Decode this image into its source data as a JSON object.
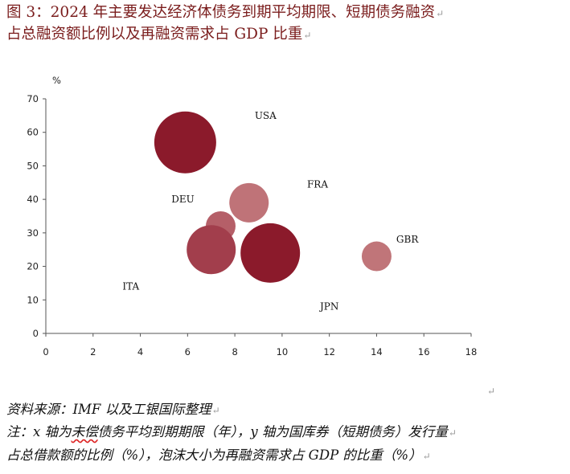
{
  "figure": {
    "title_line1": "图 3：2024 年主要发达经济体债务到期平均期限、短期债务融资",
    "title_line2": "占总融资额比例以及再融资需求占 GDP 比重"
  },
  "chart_data": {
    "type": "bubble",
    "ylabel": "%",
    "xlim": [
      0,
      18
    ],
    "ylim": [
      0,
      70
    ],
    "xticks": [
      0,
      2,
      4,
      6,
      8,
      10,
      12,
      14,
      16,
      18
    ],
    "yticks": [
      0,
      10,
      20,
      30,
      40,
      50,
      60,
      70
    ],
    "points": [
      {
        "label": "USA",
        "x": 5.9,
        "y": 57,
        "size": 38.5,
        "color": "#8b1a2b"
      },
      {
        "label": "FRA",
        "x": 8.6,
        "y": 39,
        "size": 24.5,
        "color": "#bf7378"
      },
      {
        "label": "DEU",
        "x": 7.4,
        "y": 32,
        "size": 18.5,
        "color": "#b55f68"
      },
      {
        "label": "ITA",
        "x": 7.0,
        "y": 25,
        "size": 30.5,
        "color": "#a23e4c"
      },
      {
        "label": "JPN",
        "x": 9.5,
        "y": 24,
        "size": 37,
        "color": "#8b1a2b"
      },
      {
        "label": "GBR",
        "x": 14.0,
        "y": 23,
        "size": 18.5,
        "color": "#c07579"
      }
    ],
    "labels": [
      {
        "text": "USA",
        "x": 9.3,
        "y": 65
      },
      {
        "text": "FRA",
        "x": 11.5,
        "y": 44.5
      },
      {
        "text": "DEU",
        "x": 5.8,
        "y": 40
      },
      {
        "text": "GBR",
        "x": 15.3,
        "y": 28
      },
      {
        "text": "ITA",
        "x": 3.6,
        "y": 14
      },
      {
        "text": "JPN",
        "x": 12.0,
        "y": 8
      }
    ]
  },
  "notes": {
    "source": "资料来源：IMF 以及工银国际整理",
    "line2_a": "注：x 轴为",
    "line2_wavy": "未偿",
    "line2_b": "债务平均到期期限（年），y 轴为国库券（短期债务）发行量",
    "line3": "占总借款额的比例（%），泡沫大小为再融资需求占 GDP 的比重（%）"
  },
  "return_mark": "↵"
}
